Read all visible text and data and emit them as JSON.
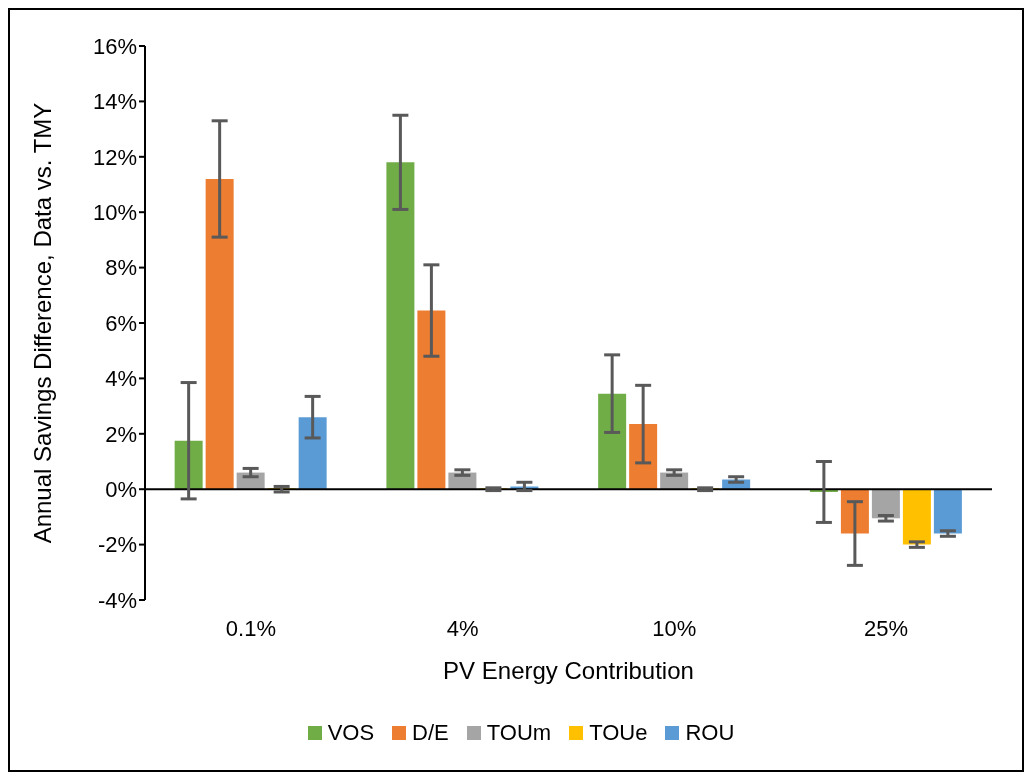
{
  "chart_data": {
    "type": "bar",
    "xlabel": "PV Energy Contribution",
    "ylabel": "Annual  Savings Difference, Data vs. TMY",
    "categories": [
      "0.1%",
      "4%",
      "10%",
      "25%"
    ],
    "series": [
      {
        "name": "VOS",
        "color": "#70ad47",
        "values": [
          1.75,
          11.8,
          3.45,
          -0.1
        ],
        "errors": [
          2.1,
          1.7,
          1.4,
          1.1
        ]
      },
      {
        "name": "D/E",
        "color": "#ed7d31",
        "values": [
          11.2,
          6.45,
          2.35,
          -1.6
        ],
        "errors": [
          2.1,
          1.65,
          1.4,
          1.15
        ]
      },
      {
        "name": "TOUm",
        "color": "#a5a5a5",
        "values": [
          0.6,
          0.6,
          0.6,
          -1.05
        ],
        "errors": [
          0.15,
          0.1,
          0.1,
          0.1
        ]
      },
      {
        "name": "TOUe",
        "color": "#ffc000",
        "values": [
          0,
          0,
          0,
          -2.0
        ],
        "errors": [
          0.1,
          0.05,
          0.05,
          0.1
        ]
      },
      {
        "name": "ROU",
        "color": "#5b9bd5",
        "values": [
          2.6,
          0.1,
          0.35,
          -1.6
        ],
        "errors": [
          0.75,
          0.15,
          0.1,
          0.1
        ]
      }
    ],
    "ylim": [
      -4,
      16
    ],
    "yticks": [
      {
        "value": -4,
        "label": "-4%"
      },
      {
        "value": -2,
        "label": "-2%"
      },
      {
        "value": 0,
        "label": "0%"
      },
      {
        "value": 2,
        "label": "2%"
      },
      {
        "value": 4,
        "label": "4%"
      },
      {
        "value": 6,
        "label": "6%"
      },
      {
        "value": 8,
        "label": "8%"
      },
      {
        "value": 10,
        "label": "10%"
      },
      {
        "value": 12,
        "label": "12%"
      },
      {
        "value": 14,
        "label": "14%"
      },
      {
        "value": 16,
        "label": "16%"
      }
    ],
    "ref_lines": [
      {
        "axis": "y",
        "value": 0,
        "color": "#000000"
      }
    ],
    "grid": false,
    "legend": "bottom"
  }
}
